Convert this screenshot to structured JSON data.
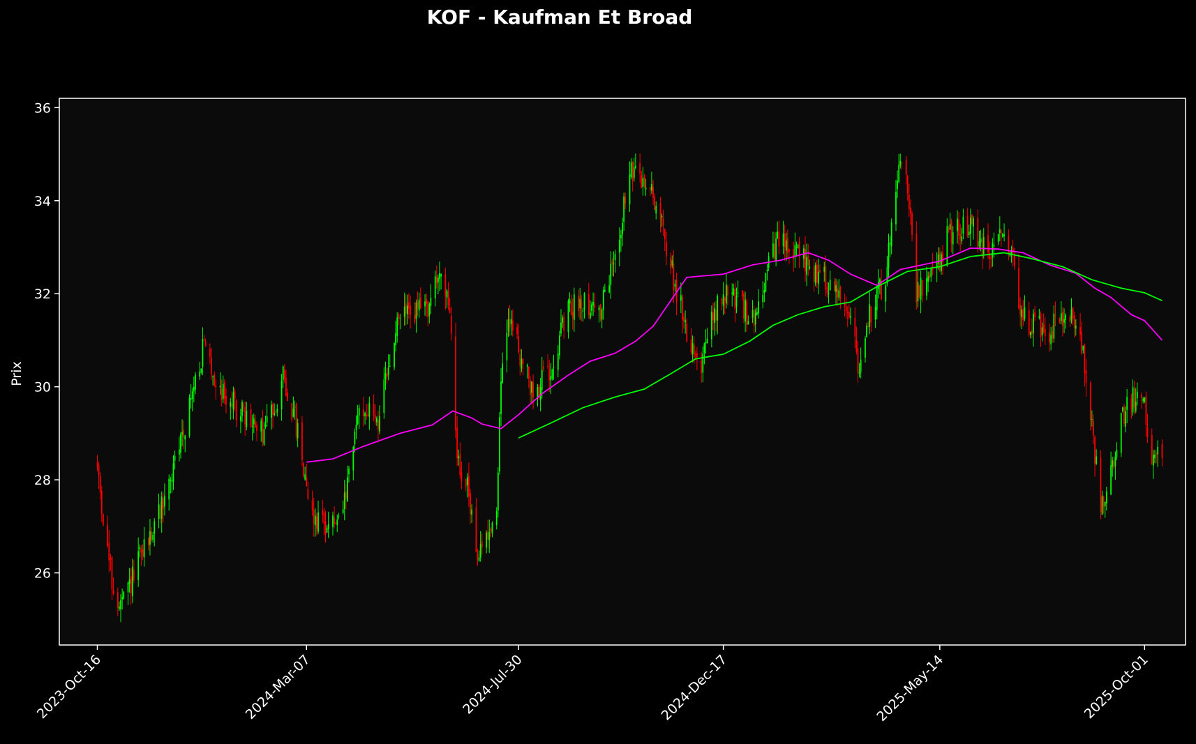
{
  "chart_data": {
    "type": "candlestick",
    "title": "KOF - Kaufman Et Broad",
    "ylabel": "Prix",
    "xlabel": "",
    "ylim": [
      24.45,
      36.2
    ],
    "xlim": [
      "2023-09-20",
      "2025-10-29"
    ],
    "y_ticks": [
      26,
      28,
      30,
      32,
      34,
      36
    ],
    "x_ticks": [
      "2023-Oct-16",
      "2024-Mar-07",
      "2024-Jul-30",
      "2024-Dec-17",
      "2025-May-14",
      "2025-Oct-01"
    ],
    "grid": false,
    "background": "#0b0b0b",
    "up_color": "#00ff00",
    "down_color": "#ff0000",
    "date_range": [
      "2023-10-16",
      "2025-10-13"
    ],
    "close_anchors": [
      [
        "2023-10-16",
        28.3
      ],
      [
        "2023-10-20",
        27.2
      ],
      [
        "2023-10-26",
        25.8
      ],
      [
        "2023-10-31",
        25.2
      ],
      [
        "2023-11-06",
        25.6
      ],
      [
        "2023-11-14",
        26.3
      ],
      [
        "2023-11-24",
        27.0
      ],
      [
        "2023-12-06",
        28.1
      ],
      [
        "2023-12-18",
        29.6
      ],
      [
        "2023-12-28",
        30.9
      ],
      [
        "2024-01-05",
        30.1
      ],
      [
        "2024-01-12",
        29.8
      ],
      [
        "2024-01-26",
        29.3
      ],
      [
        "2024-02-06",
        29.0
      ],
      [
        "2024-02-14",
        29.6
      ],
      [
        "2024-02-20",
        30.2
      ],
      [
        "2024-02-28",
        29.3
      ],
      [
        "2024-03-07",
        28.0
      ],
      [
        "2024-03-11",
        27.2
      ],
      [
        "2024-03-20",
        27.1
      ],
      [
        "2024-03-29",
        27.0
      ],
      [
        "2024-04-04",
        27.8
      ],
      [
        "2024-04-12",
        29.6
      ],
      [
        "2024-04-25",
        29.3
      ],
      [
        "2024-05-03",
        30.5
      ],
      [
        "2024-05-10",
        31.6
      ],
      [
        "2024-05-20",
        31.6
      ],
      [
        "2024-05-31",
        31.8
      ],
      [
        "2024-06-07",
        32.6
      ],
      [
        "2024-06-14",
        31.2
      ],
      [
        "2024-06-18",
        28.5
      ],
      [
        "2024-06-25",
        27.8
      ],
      [
        "2024-07-03",
        26.3
      ],
      [
        "2024-07-08",
        26.8
      ],
      [
        "2024-07-15",
        27.4
      ],
      [
        "2024-07-18",
        30.2
      ],
      [
        "2024-07-24",
        31.5
      ],
      [
        "2024-08-02",
        30.5
      ],
      [
        "2024-08-09",
        29.8
      ],
      [
        "2024-08-20",
        30.4
      ],
      [
        "2024-09-02",
        31.6
      ],
      [
        "2024-09-12",
        31.9
      ],
      [
        "2024-09-24",
        31.6
      ],
      [
        "2024-10-04",
        32.8
      ],
      [
        "2024-10-14",
        34.6
      ],
      [
        "2024-10-24",
        34.4
      ],
      [
        "2024-11-01",
        34.0
      ],
      [
        "2024-11-11",
        32.6
      ],
      [
        "2024-11-22",
        31.2
      ],
      [
        "2024-12-02",
        30.5
      ],
      [
        "2024-12-10",
        31.5
      ],
      [
        "2024-12-20",
        32.1
      ],
      [
        "2025-01-06",
        31.4
      ],
      [
        "2025-01-14",
        32.3
      ],
      [
        "2025-01-23",
        33.1
      ],
      [
        "2025-02-04",
        32.9
      ],
      [
        "2025-02-13",
        32.6
      ],
      [
        "2025-02-25",
        32.3
      ],
      [
        "2025-03-07",
        32.0
      ],
      [
        "2025-03-14",
        31.6
      ],
      [
        "2025-03-20",
        30.3
      ],
      [
        "2025-03-27",
        31.5
      ],
      [
        "2025-04-07",
        32.4
      ],
      [
        "2025-04-17",
        35.1
      ],
      [
        "2025-04-22",
        34.3
      ],
      [
        "2025-04-28",
        32.0
      ],
      [
        "2025-05-09",
        32.3
      ],
      [
        "2025-05-20",
        33.3
      ],
      [
        "2025-06-04",
        33.5
      ],
      [
        "2025-06-16",
        32.8
      ],
      [
        "2025-06-25",
        33.2
      ],
      [
        "2025-07-03",
        33.0
      ],
      [
        "2025-07-08",
        31.6
      ],
      [
        "2025-07-17",
        31.3
      ],
      [
        "2025-07-28",
        31.2
      ],
      [
        "2025-08-08",
        31.6
      ],
      [
        "2025-08-18",
        31.2
      ],
      [
        "2025-08-25",
        29.5
      ],
      [
        "2025-09-01",
        27.4
      ],
      [
        "2025-09-05",
        27.5
      ],
      [
        "2025-09-15",
        29.3
      ],
      [
        "2025-09-24",
        29.8
      ],
      [
        "2025-10-01",
        29.7
      ],
      [
        "2025-10-06",
        28.3
      ],
      [
        "2025-10-13",
        28.6
      ]
    ],
    "series": [
      {
        "color": "#ff00ff",
        "points": [
          [
            "2024-03-07",
            28.38
          ],
          [
            "2024-03-25",
            28.45
          ],
          [
            "2024-04-15",
            28.72
          ],
          [
            "2024-05-10",
            29.0
          ],
          [
            "2024-06-01",
            29.18
          ],
          [
            "2024-06-15",
            29.48
          ],
          [
            "2024-06-28",
            29.33
          ],
          [
            "2024-07-05",
            29.2
          ],
          [
            "2024-07-18",
            29.1
          ],
          [
            "2024-07-30",
            29.4
          ],
          [
            "2024-08-15",
            29.85
          ],
          [
            "2024-09-02",
            30.25
          ],
          [
            "2024-09-17",
            30.55
          ],
          [
            "2024-10-04",
            30.72
          ],
          [
            "2024-10-18",
            30.98
          ],
          [
            "2024-10-30",
            31.3
          ],
          [
            "2024-11-11",
            31.85
          ],
          [
            "2024-11-22",
            32.35
          ],
          [
            "2024-12-02",
            32.38
          ],
          [
            "2024-12-17",
            32.42
          ],
          [
            "2025-01-06",
            32.62
          ],
          [
            "2025-01-25",
            32.72
          ],
          [
            "2025-02-13",
            32.88
          ],
          [
            "2025-02-27",
            32.72
          ],
          [
            "2025-03-14",
            32.42
          ],
          [
            "2025-04-01",
            32.18
          ],
          [
            "2025-04-17",
            32.52
          ],
          [
            "2025-05-14",
            32.7
          ],
          [
            "2025-06-04",
            32.98
          ],
          [
            "2025-06-23",
            32.96
          ],
          [
            "2025-07-10",
            32.88
          ],
          [
            "2025-07-28",
            32.62
          ],
          [
            "2025-08-15",
            32.44
          ],
          [
            "2025-08-28",
            32.12
          ],
          [
            "2025-09-08",
            31.92
          ],
          [
            "2025-09-22",
            31.55
          ],
          [
            "2025-10-01",
            31.42
          ],
          [
            "2025-10-13",
            31.0
          ]
        ]
      },
      {
        "color": "#00ff00",
        "points": [
          [
            "2024-07-30",
            28.9
          ],
          [
            "2024-08-21",
            29.22
          ],
          [
            "2024-09-12",
            29.55
          ],
          [
            "2024-10-04",
            29.78
          ],
          [
            "2024-10-24",
            29.95
          ],
          [
            "2024-11-11",
            30.28
          ],
          [
            "2024-11-28",
            30.6
          ],
          [
            "2024-12-17",
            30.7
          ],
          [
            "2025-01-04",
            30.98
          ],
          [
            "2025-01-20",
            31.32
          ],
          [
            "2025-02-06",
            31.55
          ],
          [
            "2025-02-24",
            31.72
          ],
          [
            "2025-03-14",
            31.82
          ],
          [
            "2025-04-01",
            32.15
          ],
          [
            "2025-04-22",
            32.48
          ],
          [
            "2025-05-14",
            32.58
          ],
          [
            "2025-06-04",
            32.8
          ],
          [
            "2025-06-27",
            32.88
          ],
          [
            "2025-07-15",
            32.76
          ],
          [
            "2025-08-06",
            32.58
          ],
          [
            "2025-08-26",
            32.3
          ],
          [
            "2025-09-15",
            32.12
          ],
          [
            "2025-10-01",
            32.02
          ],
          [
            "2025-10-13",
            31.85
          ]
        ]
      }
    ]
  }
}
